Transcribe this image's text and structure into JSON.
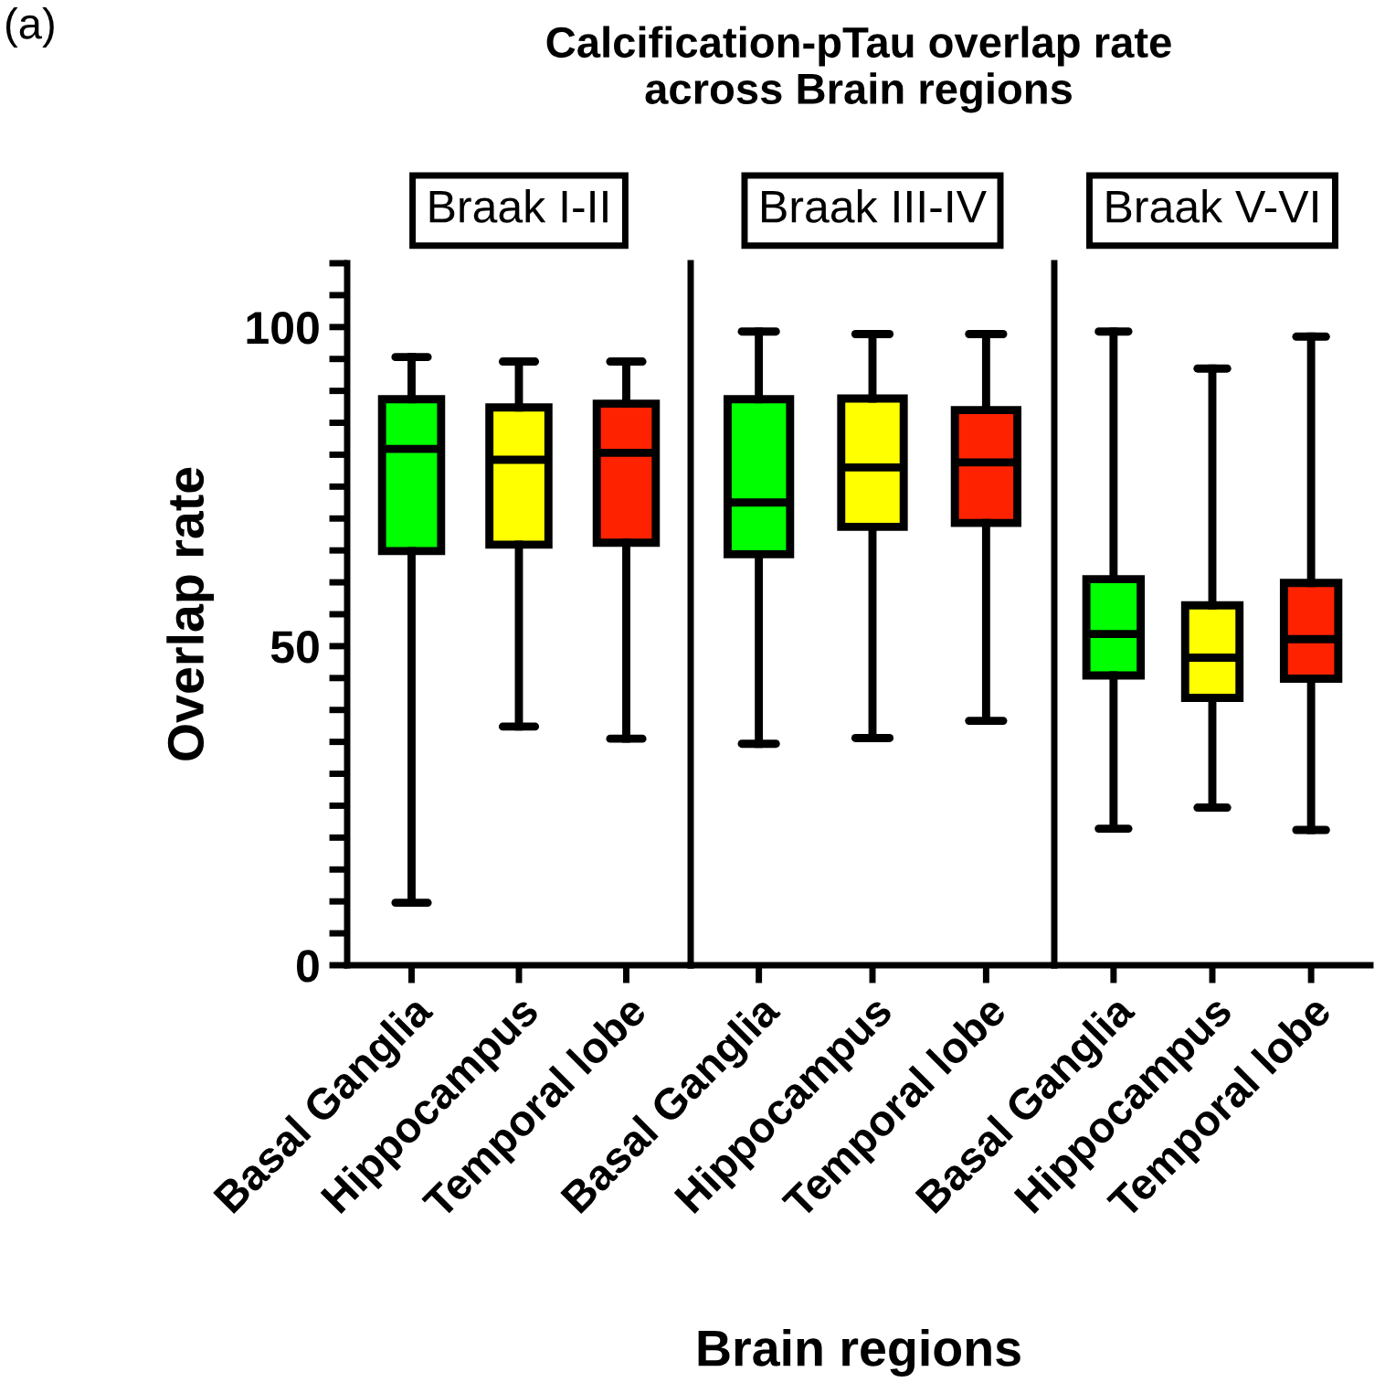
{
  "chart_data": [
    {
      "type": "box",
      "title": "Calcification-pTau overlap rate\nacross Brain regions",
      "subtitle": "Braak I-II",
      "ylabel": "Overlap rate",
      "annotations": [
        "(a)"
      ],
      "categories": [
        "Basal Ganglia",
        "Hippocampus",
        "Temporal lobe"
      ],
      "colors": [
        "#00ff00",
        "#ffff00",
        "#ff2200"
      ],
      "boxes": [
        {
          "low": 9.8,
          "q1": 64.9,
          "median": 80.9,
          "q3": 88.7,
          "high": 95.3
        },
        {
          "low": 37.4,
          "q1": 65.9,
          "median": 79.2,
          "q3": 87.4,
          "high": 94.6
        },
        {
          "low": 35.5,
          "q1": 66.2,
          "median": 80.3,
          "q3": 88,
          "high": 94.6
        }
      ],
      "ylim": [
        0,
        110
      ],
      "yticks": [
        0,
        {
          "value": 5,
          "label": null
        },
        {
          "value": 10,
          "label": null
        },
        {
          "value": 15,
          "label": null
        },
        {
          "value": 20,
          "label": null
        },
        {
          "value": 25,
          "label": null
        },
        {
          "value": 30,
          "label": null
        },
        {
          "value": 35,
          "label": null
        },
        {
          "value": 40,
          "label": null
        },
        {
          "value": 45,
          "label": null
        },
        50,
        {
          "value": 55,
          "label": null
        },
        {
          "value": 60,
          "label": null
        },
        {
          "value": 65,
          "label": null
        },
        {
          "value": 70,
          "label": null
        },
        {
          "value": 75,
          "label": null
        },
        {
          "value": 80,
          "label": null
        },
        {
          "value": 85,
          "label": null
        },
        {
          "value": 90,
          "label": null
        },
        {
          "value": 95,
          "label": null
        },
        100,
        {
          "value": 105,
          "label": null
        },
        {
          "value": 110,
          "label": null
        }
      ],
      "grid": false
    },
    {
      "type": "box",
      "subtitle": "Braak III-IV",
      "xlabel": "Brain regions",
      "categories": [
        "Basal Ganglia",
        "Hippocampus",
        "Temporal lobe"
      ],
      "colors": [
        "#00ff00",
        "#ffff00",
        "#ff2200"
      ],
      "boxes": [
        {
          "low": 34.7,
          "q1": 64.4,
          "median": 72.5,
          "q3": 88.7,
          "high": 99.3
        },
        {
          "low": 35.6,
          "q1": 68.7,
          "median": 78,
          "q3": 88.8,
          "high": 98.9
        },
        {
          "low": 38.3,
          "q1": 69.3,
          "median": 78.8,
          "q3": 87,
          "high": 98.9
        }
      ],
      "ylim": [
        0,
        110
      ],
      "tick_labels": "x",
      "grid": false
    },
    {
      "type": "box",
      "subtitle": "Braak V-VI",
      "categories": [
        "Basal Ganglia",
        "Hippocampus",
        "Temporal lobe"
      ],
      "colors": [
        "#00ff00",
        "#ffff00",
        "#ff2200"
      ],
      "boxes": [
        {
          "low": 21.4,
          "q1": 45.4,
          "median": 51.9,
          "q3": 60.5,
          "high": 99.3
        },
        {
          "low": 24.7,
          "q1": 41.9,
          "median": 48.2,
          "q3": 56.4,
          "high": 93.5
        },
        {
          "low": 21.2,
          "q1": 44.9,
          "median": 51.1,
          "q3": 59.9,
          "high": 98.5
        }
      ],
      "ylim": [
        0,
        110
      ],
      "tick_labels": "x",
      "grid": false
    }
  ]
}
